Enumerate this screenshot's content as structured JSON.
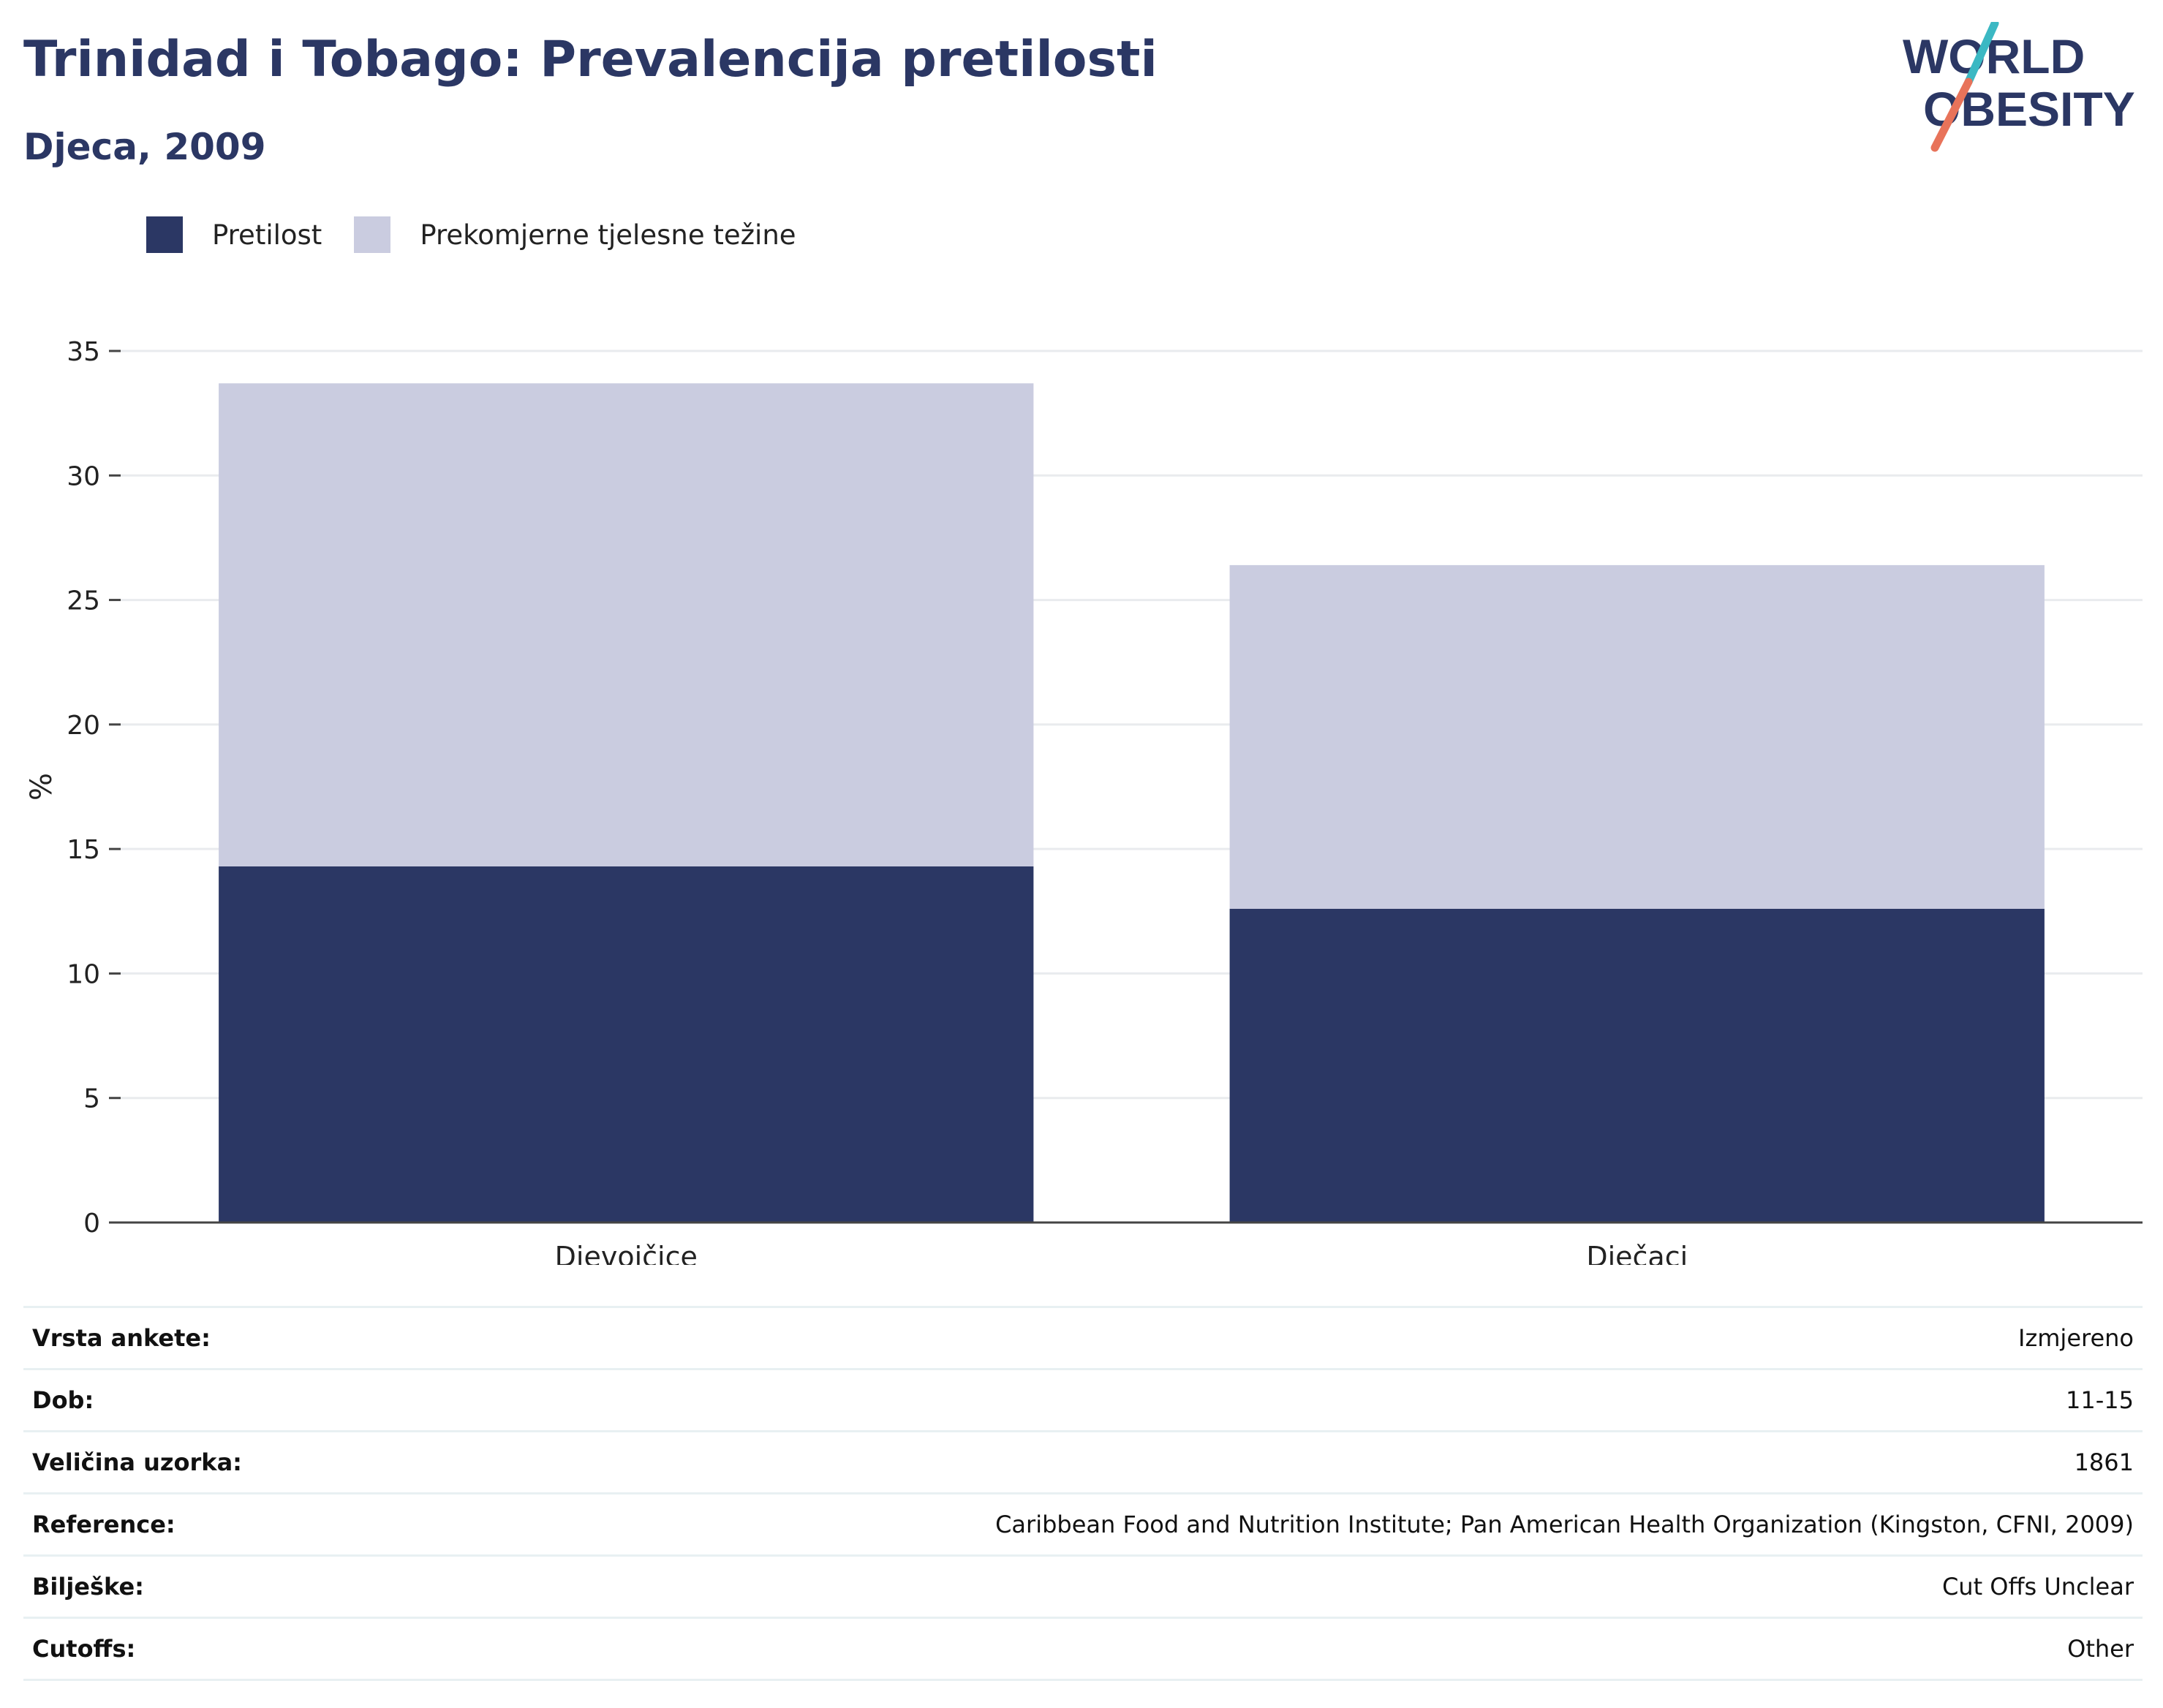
{
  "header": {
    "title": "Trinidad i Tobago: Prevalencija pretilosti",
    "subtitle": "Djeca, 2009"
  },
  "logo": {
    "line1": "WORLD",
    "line2": "OBESITY",
    "text_color": "#2b3764",
    "accent_teal": "#3bb8c3",
    "accent_coral": "#e8735a"
  },
  "legend": [
    {
      "label": "Pretilost",
      "color": "#2b3764"
    },
    {
      "label": "Prekomjerne tjelesne težine",
      "color": "#cacce0"
    }
  ],
  "chart_data": {
    "type": "bar",
    "stacked": true,
    "categories": [
      "Djevojčice",
      "Dječaci"
    ],
    "series": [
      {
        "name": "Pretilost",
        "color": "#2b3764",
        "values": [
          14.3,
          12.6
        ]
      },
      {
        "name": "Prekomjerne tjelesne težine",
        "color": "#cacce0",
        "values": [
          19.4,
          13.8
        ]
      }
    ],
    "ylabel": "%",
    "xlabel": "",
    "ylim": [
      0,
      35
    ],
    "yticks": [
      0,
      5,
      10,
      15,
      20,
      25,
      30,
      35
    ],
    "grid": true,
    "legend_position": "top-left"
  },
  "info": [
    {
      "key": "Vrsta ankete:",
      "value": "Izmjereno"
    },
    {
      "key": "Dob:",
      "value": "11-15"
    },
    {
      "key": "Veličina uzorka:",
      "value": "1861"
    },
    {
      "key": "Reference:",
      "value": "Caribbean Food and Nutrition Institute; Pan American Health Organization (Kingston, CFNI, 2009)"
    },
    {
      "key": "Bilješke:",
      "value": "Cut Offs Unclear"
    },
    {
      "key": "Cutoffs:",
      "value": "Other"
    }
  ]
}
